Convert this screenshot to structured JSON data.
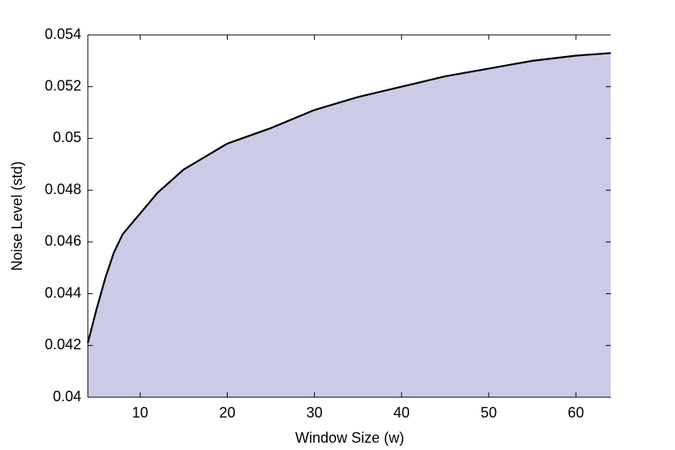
{
  "chart_data": {
    "type": "area",
    "x_label": "Window Size (w)",
    "y_label": "Noise Level (std)",
    "x": [
      4,
      5,
      6,
      7,
      8,
      10,
      12,
      15,
      20,
      25,
      30,
      35,
      40,
      45,
      50,
      55,
      60,
      64
    ],
    "series": [
      {
        "color": "#cbcbe8",
        "values": [
          0.0421,
          0.0434,
          0.0446,
          0.0456,
          0.0463,
          0.0471,
          0.0479,
          0.0488,
          0.0498,
          0.0504,
          0.0511,
          0.0516,
          0.052,
          0.0524,
          0.0527,
          0.053,
          0.0532,
          0.0533
        ]
      }
    ],
    "xlim": [
      4,
      64
    ],
    "ylim": [
      0.04,
      0.054
    ],
    "xticks": [
      10,
      20,
      30,
      40,
      50,
      60
    ],
    "yticks": [
      0.04,
      0.042,
      0.044,
      0.046,
      0.048,
      0.05,
      0.052,
      0.054
    ],
    "grid": false
  }
}
